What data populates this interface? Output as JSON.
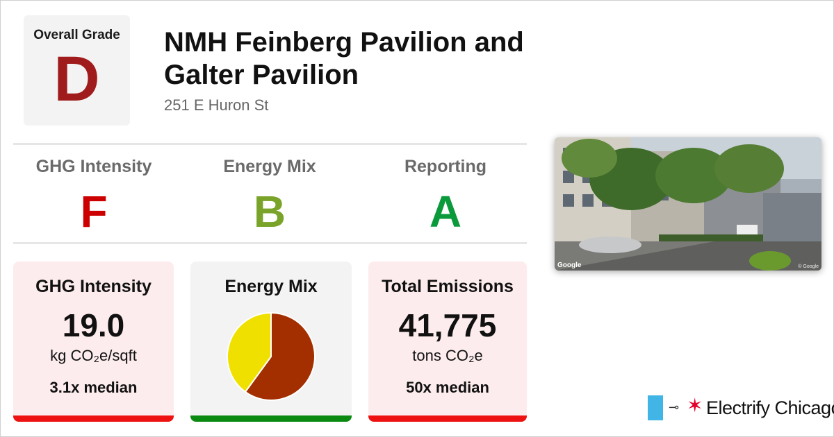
{
  "overall": {
    "label": "Overall Grade",
    "grade": "D",
    "color": "#a01c1c"
  },
  "building": {
    "name": "NMH Feinberg Pavilion and Galter Pavilion",
    "address": "251 E Huron St"
  },
  "grades": [
    {
      "name": "GHG Intensity",
      "grade": "F",
      "color": "#cc0000"
    },
    {
      "name": "Energy Mix",
      "grade": "B",
      "color": "#7aa32a"
    },
    {
      "name": "Reporting",
      "grade": "A",
      "color": "#0a9a3c"
    }
  ],
  "cards": {
    "ghg": {
      "title": "GHG Intensity",
      "value": "19.0",
      "unit": "kg CO₂e/sqft",
      "median": "3.1x median",
      "bg": "#fdeced",
      "bar": "#ee1111"
    },
    "mix": {
      "title": "Energy Mix",
      "bg": "#f3f3f3",
      "bar": "#0a8a10"
    },
    "emissions": {
      "title": "Total Emissions",
      "value": "41,775",
      "unit": "tons CO₂e",
      "median": "50x median",
      "bg": "#fdeced",
      "bar": "#ee1111"
    }
  },
  "chart_data": {
    "type": "pie",
    "slices": [
      {
        "value": 60,
        "color": "#a32f00"
      },
      {
        "value": 40,
        "color": "#f0e000"
      }
    ]
  },
  "photo": {
    "watermark": "Google",
    "copyright": "© Google"
  },
  "brand": {
    "name": "Electrify Chicago",
    "icons": [
      "plug-icon",
      "chicago-star-icon"
    ]
  }
}
